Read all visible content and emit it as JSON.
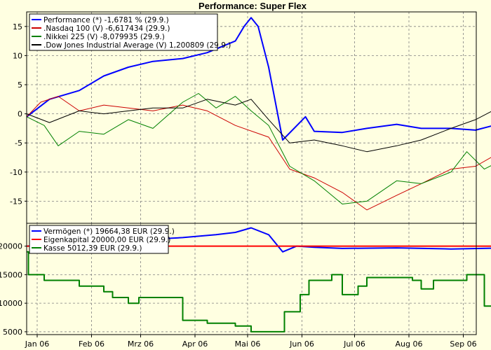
{
  "chart_data": [
    {
      "type": "line",
      "title": "Performance: Super Flex",
      "ylim": [
        -18.8,
        17.5
      ],
      "yticks": [
        -15,
        -10,
        -5,
        0,
        5,
        10,
        15
      ],
      "grid": true,
      "legend_position": "top-left",
      "x_axis": {
        "start": "2006-01-02",
        "end": "2006-10-01",
        "tick_labels": [
          "Jan 06",
          "Feb 06",
          "Mrz 06",
          "Apr 06",
          "Mai 06",
          "Jun 06",
          "Jul 06",
          "Aug 06",
          "Sep 06"
        ],
        "tick_dates": [
          "2006-01-08",
          "2006-02-08",
          "2006-03-08",
          "2006-04-08",
          "2006-05-08",
          "2006-06-08",
          "2006-07-08",
          "2006-08-08",
          "2006-09-08"
        ]
      },
      "series": [
        {
          "name": "Performance (*) -1,6781 % (29.9.)",
          "color": "#0000ff",
          "width": 2,
          "x": [
            "2006-01-02",
            "2006-01-15",
            "2006-02-01",
            "2006-02-15",
            "2006-03-01",
            "2006-03-15",
            "2006-04-01",
            "2006-04-15",
            "2006-05-01",
            "2006-05-06",
            "2006-05-10",
            "2006-05-14",
            "2006-05-20",
            "2006-05-28",
            "2006-06-10",
            "2006-06-15",
            "2006-07-01",
            "2006-07-15",
            "2006-08-01",
            "2006-08-15",
            "2006-09-01",
            "2006-09-15",
            "2006-09-29"
          ],
          "y": [
            -0.5,
            2.5,
            4.0,
            6.5,
            8.0,
            9.0,
            9.5,
            10.5,
            12.5,
            15.0,
            16.5,
            15.0,
            8.0,
            -4.5,
            -0.5,
            -3.0,
            -3.2,
            -2.5,
            -1.8,
            -2.5,
            -2.5,
            -2.8,
            -1.7
          ]
        },
        {
          "name": ".Nasdaq 100 (V) -6,617434 (29.9.)",
          "color": "#cc0000",
          "width": 1,
          "x": [
            "2006-01-02",
            "2006-01-10",
            "2006-01-20",
            "2006-02-01",
            "2006-02-15",
            "2006-03-01",
            "2006-03-15",
            "2006-04-01",
            "2006-04-15",
            "2006-05-01",
            "2006-05-20",
            "2006-06-01",
            "2006-06-15",
            "2006-07-01",
            "2006-07-15",
            "2006-08-01",
            "2006-08-15",
            "2006-09-01",
            "2006-09-15",
            "2006-09-29"
          ],
          "y": [
            -0.5,
            2.0,
            3.0,
            0.5,
            1.5,
            1.0,
            0.5,
            1.5,
            0.5,
            -2.0,
            -4.0,
            -9.5,
            -11.0,
            -13.5,
            -16.5,
            -14.0,
            -12.0,
            -9.5,
            -9.0,
            -6.6
          ]
        },
        {
          "name": ".Nikkei 225 (V) -8,079935 (29.9.)",
          "color": "#008000",
          "width": 1,
          "x": [
            "2006-01-02",
            "2006-01-12",
            "2006-01-20",
            "2006-02-01",
            "2006-02-15",
            "2006-03-01",
            "2006-03-15",
            "2006-04-01",
            "2006-04-10",
            "2006-04-20",
            "2006-05-01",
            "2006-05-10",
            "2006-05-20",
            "2006-06-01",
            "2006-06-15",
            "2006-07-01",
            "2006-07-15",
            "2006-08-01",
            "2006-08-15",
            "2006-09-01",
            "2006-09-10",
            "2006-09-20",
            "2006-09-29"
          ],
          "y": [
            -0.5,
            -2.0,
            -5.5,
            -3.0,
            -3.5,
            -1.0,
            -2.5,
            2.0,
            3.5,
            1.0,
            3.0,
            0.5,
            -2.0,
            -9.0,
            -11.5,
            -15.5,
            -15.0,
            -11.5,
            -12.0,
            -10.0,
            -6.5,
            -9.5,
            -8.1
          ]
        },
        {
          "name": ".Dow Jones Industrial Average (V) 1,200809 (29.9.)",
          "color": "#000000",
          "width": 1,
          "x": [
            "2006-01-02",
            "2006-01-15",
            "2006-02-01",
            "2006-02-15",
            "2006-03-01",
            "2006-03-15",
            "2006-04-01",
            "2006-04-15",
            "2006-05-01",
            "2006-05-10",
            "2006-05-20",
            "2006-06-01",
            "2006-06-15",
            "2006-07-01",
            "2006-07-15",
            "2006-08-01",
            "2006-08-15",
            "2006-09-01",
            "2006-09-15",
            "2006-09-29"
          ],
          "y": [
            0.0,
            -1.5,
            0.5,
            0.0,
            0.5,
            1.0,
            1.0,
            2.5,
            1.5,
            2.5,
            -1.0,
            -5.0,
            -4.5,
            -5.5,
            -6.5,
            -5.5,
            -4.5,
            -2.5,
            -1.0,
            1.2
          ]
        }
      ]
    },
    {
      "type": "line",
      "ylim": [
        4500,
        24000
      ],
      "yticks": [
        5000,
        10000,
        15000,
        20000
      ],
      "grid": true,
      "legend_position": "top-left",
      "series": [
        {
          "name": "Vermögen (*) 19664,38 EUR (29.9.)",
          "color": "#0000ff",
          "width": 2,
          "x": [
            "2006-01-02",
            "2006-02-01",
            "2006-03-01",
            "2006-04-01",
            "2006-04-20",
            "2006-05-01",
            "2006-05-10",
            "2006-05-20",
            "2006-05-28",
            "2006-06-05",
            "2006-06-15",
            "2006-07-01",
            "2006-08-01",
            "2006-09-01",
            "2006-09-29"
          ],
          "y": [
            20000,
            20600,
            21000,
            21500,
            22000,
            22400,
            23200,
            22000,
            19000,
            20000,
            19800,
            19600,
            19700,
            19500,
            19664
          ]
        },
        {
          "name": "Eigenkapital 20000,00 EUR (29.9.)",
          "color": "#ff0000",
          "width": 2,
          "x": [
            "2006-01-02",
            "2006-09-29"
          ],
          "y": [
            20000,
            20000
          ]
        },
        {
          "name": "Kasse 5012,39 EUR (29.9.)",
          "color": "#008000",
          "width": 2,
          "step": true,
          "x": [
            "2006-01-02",
            "2006-01-03",
            "2006-01-12",
            "2006-02-01",
            "2006-02-15",
            "2006-02-20",
            "2006-03-01",
            "2006-03-07",
            "2006-04-01",
            "2006-04-15",
            "2006-05-01",
            "2006-05-10",
            "2006-05-29",
            "2006-06-07",
            "2006-06-12",
            "2006-06-25",
            "2006-07-01",
            "2006-07-10",
            "2006-07-15",
            "2006-08-10",
            "2006-08-15",
            "2006-08-22",
            "2006-09-10",
            "2006-09-20",
            "2006-09-27",
            "2006-09-29"
          ],
          "y": [
            19000,
            15000,
            14000,
            13000,
            12000,
            11000,
            10000,
            11000,
            7000,
            6500,
            6000,
            5000,
            8500,
            11500,
            14000,
            15000,
            11500,
            13000,
            14500,
            14000,
            12500,
            14000,
            15000,
            9500,
            9000,
            5012
          ]
        }
      ]
    }
  ]
}
